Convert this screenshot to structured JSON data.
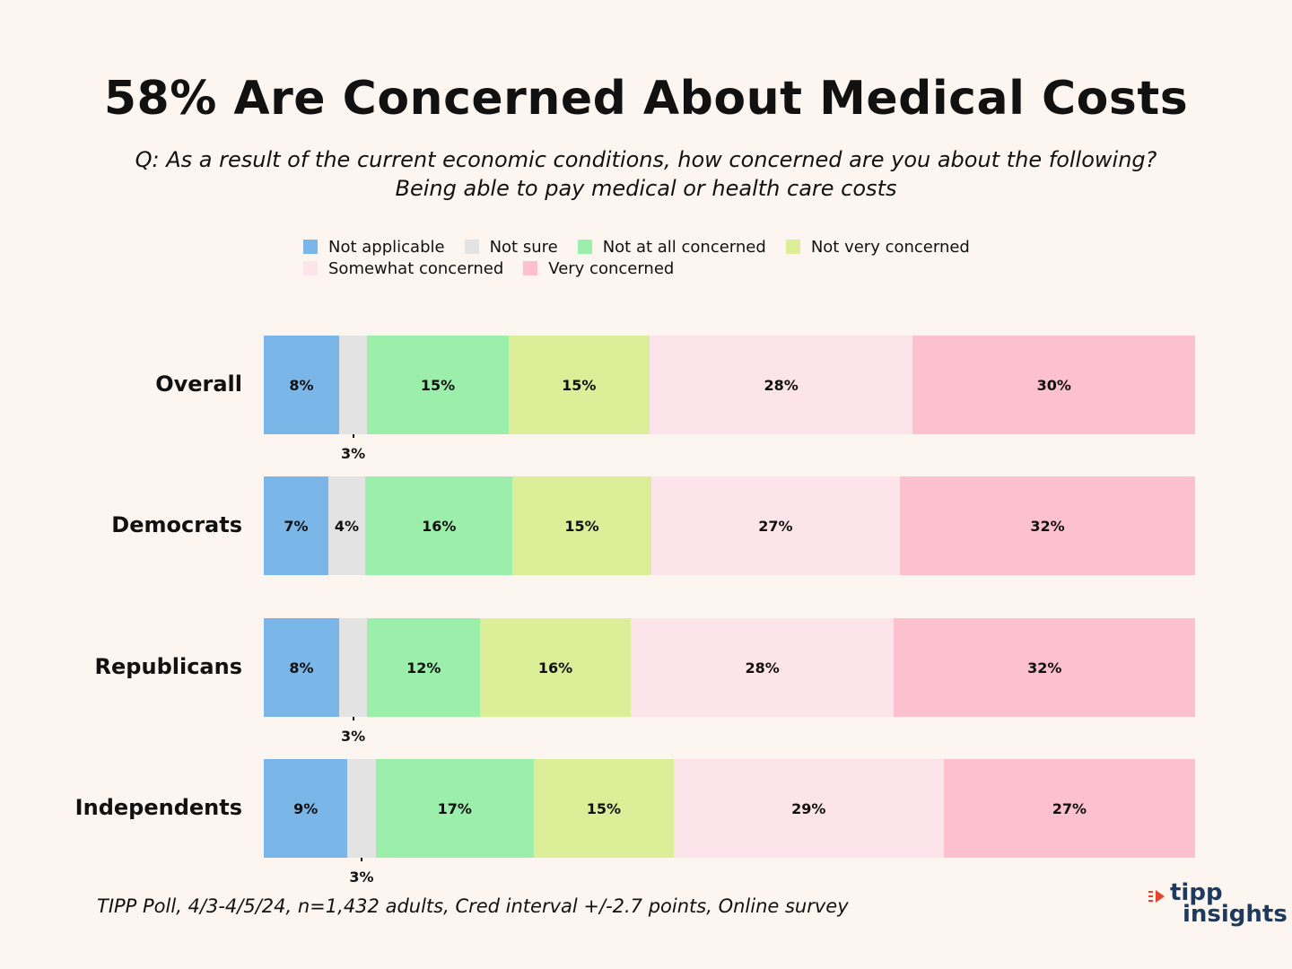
{
  "title": "58% Are Concerned About Medical Costs",
  "subtitle": "Q: As a result of the current economic conditions, how concerned are you about the following?  Being able to pay medical or health care costs",
  "source": "TIPP Poll, 4/3-4/5/24, n=1,432 adults, Cred interval +/-2.7 points, Online survey",
  "logo": {
    "line1": "tipp",
    "line2": "insights",
    "accent": "#e2452b",
    "text_color": "#1e3a5f"
  },
  "chart_data": {
    "type": "bar",
    "orientation": "horizontal",
    "stacked": true,
    "title": "58% Are Concerned About Medical Costs",
    "categories": [
      "Overall",
      "Democrats",
      "Republicans",
      "Independents"
    ],
    "series": [
      {
        "name": "Not applicable",
        "color": "#7ab6e8",
        "values": [
          8,
          7,
          8,
          9
        ],
        "labels": [
          "8%",
          "7%",
          "8%",
          "9%"
        ]
      },
      {
        "name": "Not sure",
        "color": "#e3e3e3",
        "values": [
          3,
          4,
          3,
          3
        ],
        "labels": [
          "3%",
          "4%",
          "3%",
          "3%"
        ]
      },
      {
        "name": "Not at all concerned",
        "color": "#9cefaa",
        "values": [
          15,
          16,
          12,
          17
        ],
        "labels": [
          "15%",
          "16%",
          "12%",
          "17%"
        ]
      },
      {
        "name": "Not very concerned",
        "color": "#dcee98",
        "values": [
          15,
          15,
          16,
          15
        ],
        "labels": [
          "15%",
          "15%",
          "16%",
          "15%"
        ]
      },
      {
        "name": "Somewhat concerned",
        "color": "#fde4ea",
        "values": [
          28,
          27,
          28,
          29
        ],
        "labels": [
          "28%",
          "27%",
          "28%",
          "29%"
        ]
      },
      {
        "name": "Very concerned",
        "color": "#fdc0cf",
        "values": [
          30,
          32,
          32,
          27
        ],
        "labels": [
          "30%",
          "32%",
          "32%",
          "27%"
        ]
      }
    ],
    "legend_position": "top",
    "grid": false
  }
}
